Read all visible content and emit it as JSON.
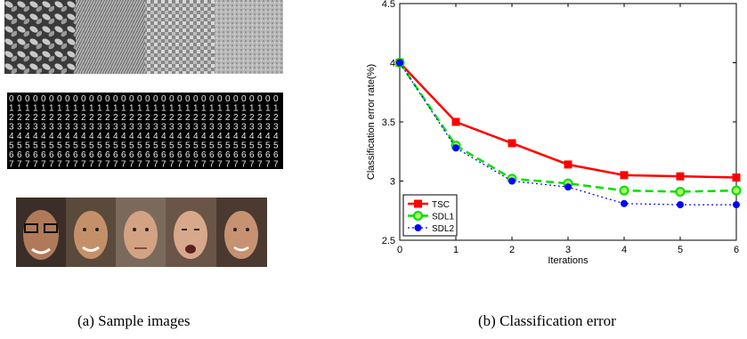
{
  "captions": {
    "a": "(a) Sample images",
    "b": "(b) Classification error"
  },
  "sample_images": {
    "texture_strip": "texture-samples",
    "digit_strip": "handwritten-digit-samples",
    "face_strip": "face-samples"
  },
  "colors": {
    "tsc": "#ff0000",
    "sdl1": "#00dd00",
    "sdl2": "#0000ff",
    "sdl1_marker_fill": "#aaff66"
  },
  "chart_data": {
    "type": "line",
    "xlabel": "Iterations",
    "ylabel": "Classification error rate(%)",
    "x": [
      0,
      1,
      2,
      3,
      4,
      5,
      6
    ],
    "xlim": [
      0,
      6
    ],
    "ylim": [
      2.5,
      4.5
    ],
    "xticks": [
      "0",
      "1",
      "2",
      "3",
      "4",
      "5",
      "6"
    ],
    "yticks": [
      "2.5",
      "3",
      "3.5",
      "4",
      "4.5"
    ],
    "grid": false,
    "legend_position": "bottom-left",
    "series": [
      {
        "name": "TSC",
        "values": [
          4.0,
          3.5,
          3.32,
          3.14,
          3.05,
          3.04,
          3.03
        ],
        "style": "solid",
        "marker": "square"
      },
      {
        "name": "SDL1",
        "values": [
          4.0,
          3.3,
          3.02,
          2.98,
          2.92,
          2.91,
          2.92
        ],
        "style": "dashed",
        "marker": "circle-open"
      },
      {
        "name": "SDL2",
        "values": [
          4.0,
          3.28,
          3.0,
          2.95,
          2.81,
          2.8,
          2.8
        ],
        "style": "dotted",
        "marker": "dot"
      }
    ]
  }
}
